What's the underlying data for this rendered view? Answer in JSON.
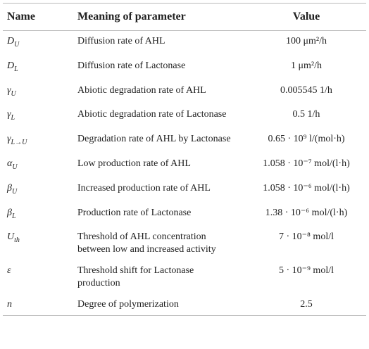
{
  "table": {
    "header": [
      "Name",
      "Meaning of parameter",
      "Value"
    ],
    "rows": [
      [
        {
          "symbol": "D",
          "subscript": "U"
        },
        "Diffusion rate of AHL",
        "100 μm²/h"
      ],
      [
        {
          "symbol": "D",
          "subscript": "L"
        },
        "Diffusion rate of Lactonase",
        "1 μm²/h"
      ],
      [
        {
          "symbol": "γ",
          "subscript": "U"
        },
        "Abiotic degradation rate of AHL",
        "0.005545 1/h"
      ],
      [
        {
          "symbol": "γ",
          "subscript": "L"
        },
        "Abiotic degradation rate of Lactonase",
        "0.5 1/h"
      ],
      [
        {
          "symbol": "γ",
          "subscript": "L→U"
        },
        "Degradation rate of AHL by Lactonase",
        "0.65 · 10⁹ l/(mol·h)"
      ],
      [
        {
          "symbol": "α",
          "subscript": "U"
        },
        "Low production rate of AHL",
        "1.058 · 10⁻⁷ mol/(l·h)"
      ],
      [
        {
          "symbol": "β",
          "subscript": "U"
        },
        "Increased production rate of AHL",
        "1.058 · 10⁻⁶ mol/(l·h)"
      ],
      [
        {
          "symbol": "β",
          "subscript": "L"
        },
        "Production rate of Lactonase",
        "1.38 · 10⁻⁶ mol/(l·h)"
      ],
      [
        {
          "symbol": "U",
          "subscript": "th"
        },
        "Threshold of AHL concentration between low and increased activity",
        "7 · 10⁻⁸ mol/l"
      ],
      [
        {
          "symbol": "ε"
        },
        "Threshold shift for Lactonase production",
        "5 · 10⁻⁹ mol/l"
      ],
      [
        {
          "symbol": "n"
        },
        "Degree of polymerization",
        "2.5"
      ]
    ]
  }
}
